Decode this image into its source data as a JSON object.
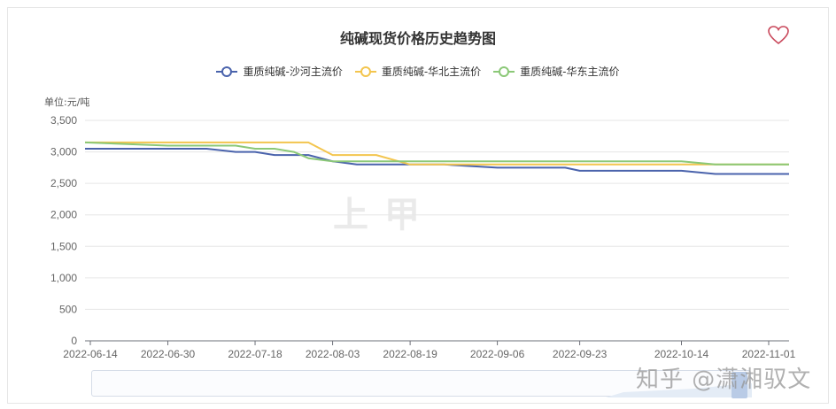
{
  "header": {
    "title": "纯碱现货价格历史趋势图",
    "favorite_icon": "heart-outline-icon"
  },
  "legend": [
    {
      "label": "重质纯碱-沙河主流价",
      "color": "#4a63ac"
    },
    {
      "label": "重质纯碱-华北主流价",
      "color": "#f3c54e"
    },
    {
      "label": "重质纯碱-华东主流价",
      "color": "#8bc877"
    }
  ],
  "axis": {
    "unit_label": "单位:元/吨",
    "y_ticks": [
      "3,500",
      "3,000",
      "2,500",
      "2,000",
      "1,500",
      "1,000",
      "500",
      "0"
    ],
    "x_ticks": [
      "2022-06-14",
      "2022-06-30",
      "2022-07-18",
      "2022-08-03",
      "2022-08-19",
      "2022-09-06",
      "2022-09-23",
      "2022-10-14",
      "2022-11-01"
    ]
  },
  "watermarks": {
    "center_logo": "上甲",
    "bottom_right": "知乎 @潇湘驭文"
  },
  "chart_data": {
    "type": "line",
    "title": "纯碱现货价格历史趋势图",
    "xlabel": "",
    "ylabel": "单位:元/吨",
    "ylim": [
      0,
      3500
    ],
    "grid": true,
    "legend_position": "top",
    "x": [
      "2022-06-14",
      "2022-06-30",
      "2022-07-08",
      "2022-07-14",
      "2022-07-18",
      "2022-07-22",
      "2022-07-26",
      "2022-07-29",
      "2022-08-03",
      "2022-08-08",
      "2022-08-12",
      "2022-08-19",
      "2022-08-26",
      "2022-09-06",
      "2022-09-20",
      "2022-09-23",
      "2022-10-14",
      "2022-10-21",
      "2022-11-01",
      "2022-11-04"
    ],
    "series": [
      {
        "name": "重质纯碱-沙河主流价",
        "color": "#4a63ac",
        "values": [
          3050,
          3050,
          3050,
          3000,
          3000,
          2950,
          2950,
          2950,
          2850,
          2800,
          2800,
          2800,
          2800,
          2750,
          2750,
          2700,
          2700,
          2650,
          2650,
          2650
        ]
      },
      {
        "name": "重质纯碱-华北主流价",
        "color": "#f3c54e",
        "values": [
          3150,
          3150,
          3150,
          3150,
          3150,
          3150,
          3150,
          3150,
          2950,
          2950,
          2950,
          2800,
          2800,
          2800,
          2800,
          2800,
          2800,
          2800,
          2800,
          2800
        ]
      },
      {
        "name": "重质纯碱-华东主流价",
        "color": "#8bc877",
        "values": [
          3150,
          3100,
          3100,
          3100,
          3050,
          3050,
          3000,
          2900,
          2850,
          2850,
          2850,
          2850,
          2850,
          2850,
          2850,
          2850,
          2850,
          2800,
          2800,
          2800
        ]
      }
    ]
  }
}
